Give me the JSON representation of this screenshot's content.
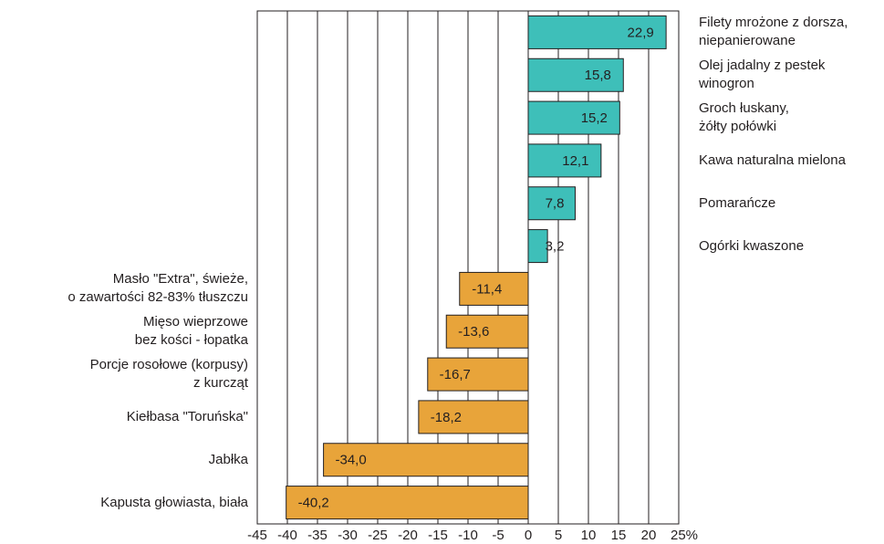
{
  "chart_data": {
    "type": "hbar",
    "categories": [
      "Filety mrożone z dorsza,\nniepanierowane",
      "Olej jadalny z pestek\nwinogron",
      "Groch łuskany,\nżółty połówki",
      "Kawa naturalna mielona",
      "Pomarańcze",
      "Ogórki kwaszone",
      "Masło \"Extra\", świeże,\no zawartości 82-83% tłuszczu",
      "Mięso wieprzowe\nbez kości - łopatka",
      "Porcje rosołowe (korpusy)\nz kurcząt",
      "Kiełbasa \"Toruńska\"",
      "Jabłka",
      "Kapusta głowiasta, biała"
    ],
    "values": [
      22.9,
      15.8,
      15.2,
      12.1,
      7.8,
      3.2,
      -11.4,
      -13.6,
      -16.7,
      -18.2,
      -34.0,
      -40.2
    ],
    "value_labels": [
      "22,9",
      "15,8",
      "15,2",
      "12,1",
      "7,8",
      "3,2",
      "-11,4",
      "-13,6",
      "-16,7",
      "-18,2",
      "-34,0",
      "-40,2"
    ],
    "colors": {
      "positive": "#3ebfb9",
      "negative": "#e8a43a"
    },
    "xlim": [
      -45,
      25
    ],
    "xticks": [
      -45,
      -40,
      -35,
      -30,
      -25,
      -20,
      -15,
      -10,
      -5,
      0,
      5,
      10,
      15,
      20,
      {
        "value": 25,
        "label": "25%"
      }
    ],
    "grid": true
  }
}
